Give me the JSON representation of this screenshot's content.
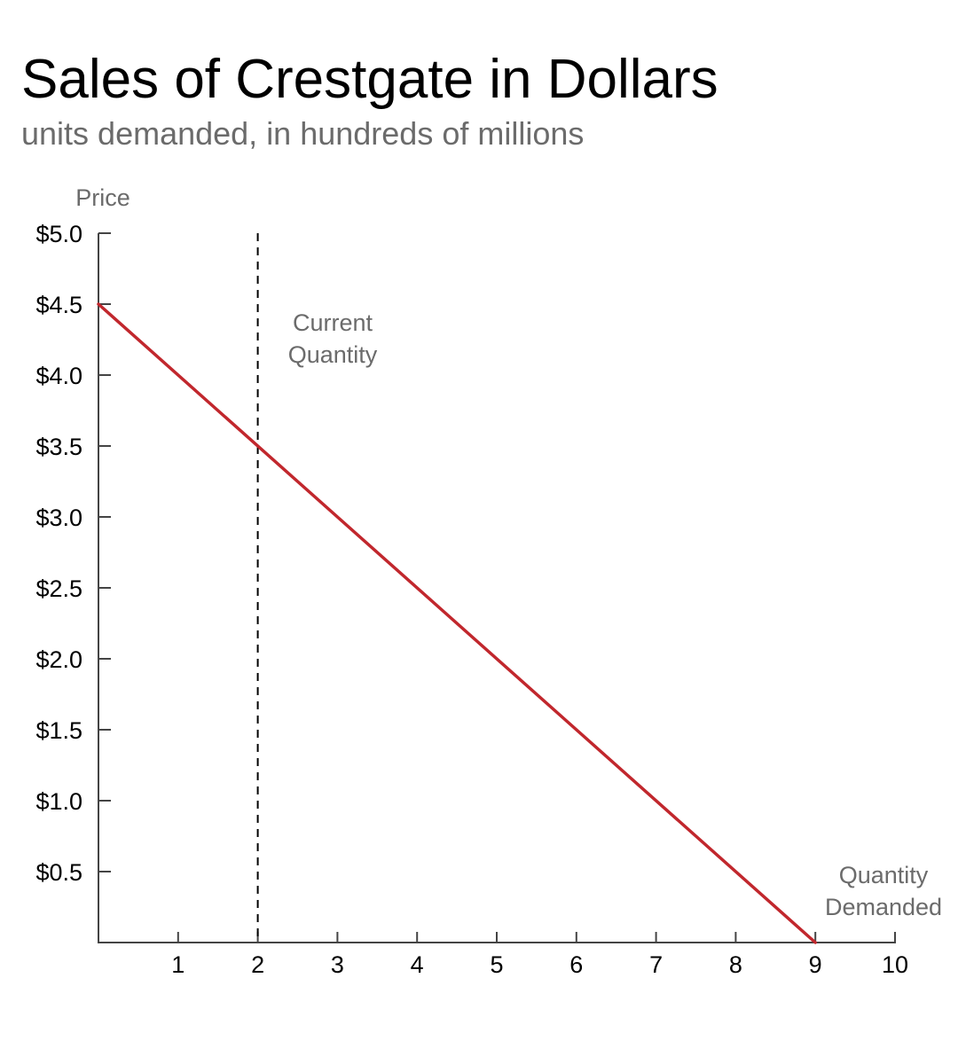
{
  "chart_data": {
    "type": "line",
    "title": "Sales of Crestgate in Dollars",
    "subtitle": "units demanded, in hundreds of millions",
    "ylabel": "Price",
    "xlabel": [
      "Quantity",
      "Demanded"
    ],
    "xlim": [
      0,
      10
    ],
    "ylim": [
      0,
      5
    ],
    "x_ticks": [
      1,
      2,
      3,
      4,
      5,
      6,
      7,
      8,
      9,
      10
    ],
    "x_tick_labels": [
      "1",
      "2",
      "3",
      "4",
      "5",
      "6",
      "7",
      "8",
      "9",
      "10"
    ],
    "y_ticks": [
      5.0,
      4.5,
      4.0,
      3.5,
      3.0,
      2.5,
      2.0,
      1.5,
      1.0,
      0.5
    ],
    "y_tick_labels": [
      "$5.0",
      "$4.5",
      "$4.0",
      "$3.5",
      "$3.0",
      "$2.5",
      "$2.0",
      "$1.5",
      "$1.0",
      "$0.5"
    ],
    "grid": false,
    "series": [
      {
        "x": [
          0,
          9
        ],
        "y": [
          4.5,
          0
        ],
        "color": "#c1272d"
      }
    ],
    "annotations": [
      {
        "type": "vertical-line",
        "x": 2,
        "style": "dashed",
        "label": [
          "Current",
          "Quantity"
        ]
      }
    ]
  }
}
